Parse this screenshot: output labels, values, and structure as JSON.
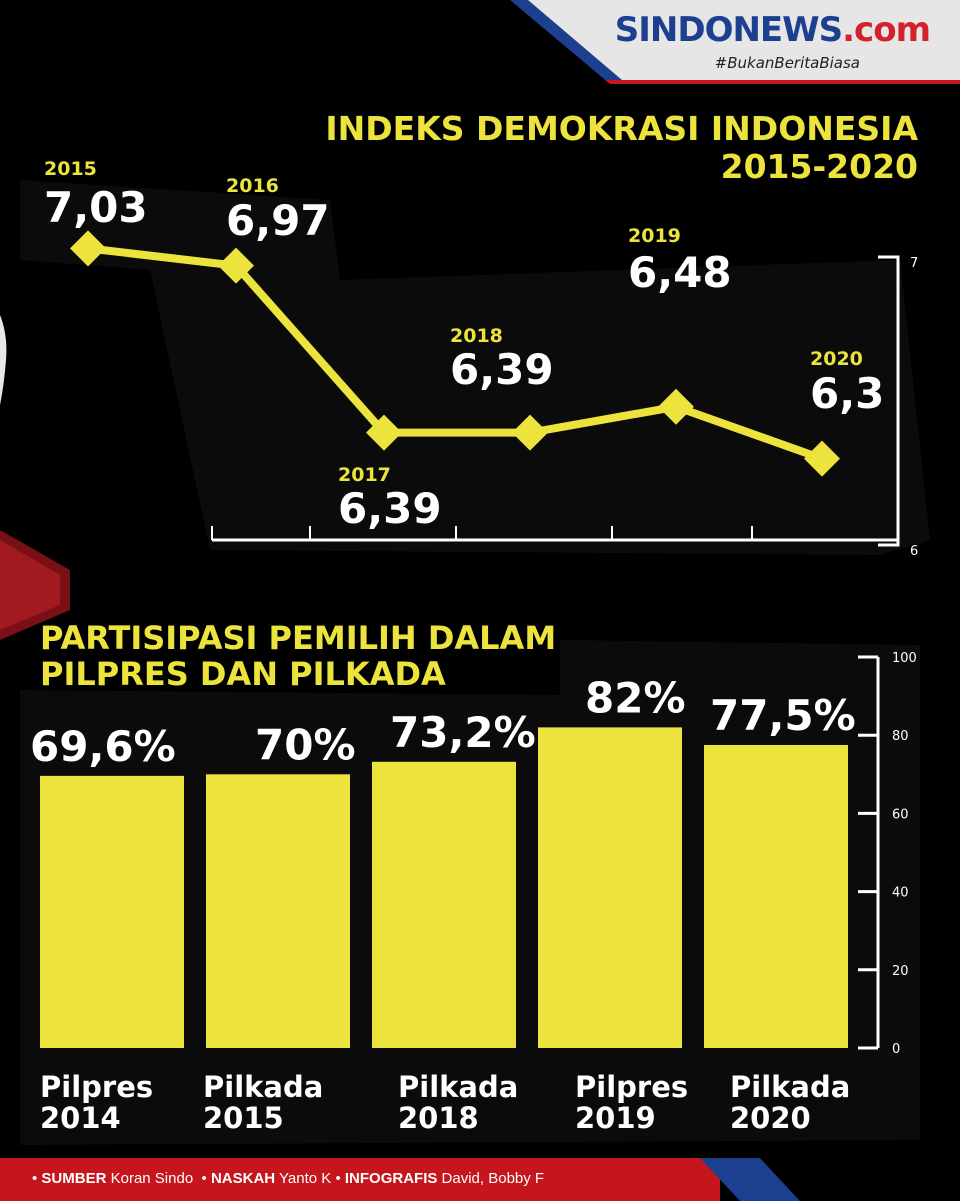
{
  "header": {
    "logo_main": "SINDONEWS",
    "logo_suffix": ".com",
    "hashtag": "#BukanBeritaBiasa"
  },
  "colors": {
    "accent_yellow": "#ece33d",
    "brand_red": "#c4161c",
    "brand_blue": "#1d3f8f",
    "background": "#000000"
  },
  "chart_data": [
    {
      "type": "line",
      "title": "INDEKS DEMOKRASI INDONESIA",
      "subtitle": "2015-2020",
      "categories": [
        "2015",
        "2016",
        "2017",
        "2018",
        "2019",
        "2020"
      ],
      "series": [
        {
          "values": [
            7.03,
            6.97,
            6.39,
            6.39,
            6.48,
            6.3
          ]
        }
      ],
      "value_labels": [
        "7,03",
        "6,97",
        "6,39",
        "6,39",
        "6,48",
        "6,3"
      ],
      "ylim": [
        6,
        7
      ],
      "yticks": [
        "6",
        "7"
      ],
      "grid": false
    },
    {
      "type": "bar",
      "title": "PARTISIPASI PEMILIH DALAM",
      "subtitle": "PILPRES DAN PILKADA",
      "categories": [
        [
          "Pilpres",
          "2014"
        ],
        [
          "Pilkada",
          "2015"
        ],
        [
          "Pilkada",
          "2018"
        ],
        [
          "Pilpres",
          "2019"
        ],
        [
          "Pilkada",
          "2020"
        ]
      ],
      "values": [
        69.6,
        70,
        73.2,
        82,
        77.5
      ],
      "value_labels": [
        "69,6%",
        "70%",
        "73,2%",
        "82%",
        "77,5%"
      ],
      "ylim": [
        0,
        100
      ],
      "yticks": [
        "0",
        "20",
        "40",
        "60",
        "80",
        "100"
      ],
      "grid": false
    }
  ],
  "footer": {
    "source_label": "SUMBER",
    "source_value": "Koran Sindo",
    "writer_label": "NASKAH",
    "writer_value": "Yanto K",
    "graphics_label": "INFOGRAFIS",
    "graphics_value": "David, Bobby F"
  }
}
